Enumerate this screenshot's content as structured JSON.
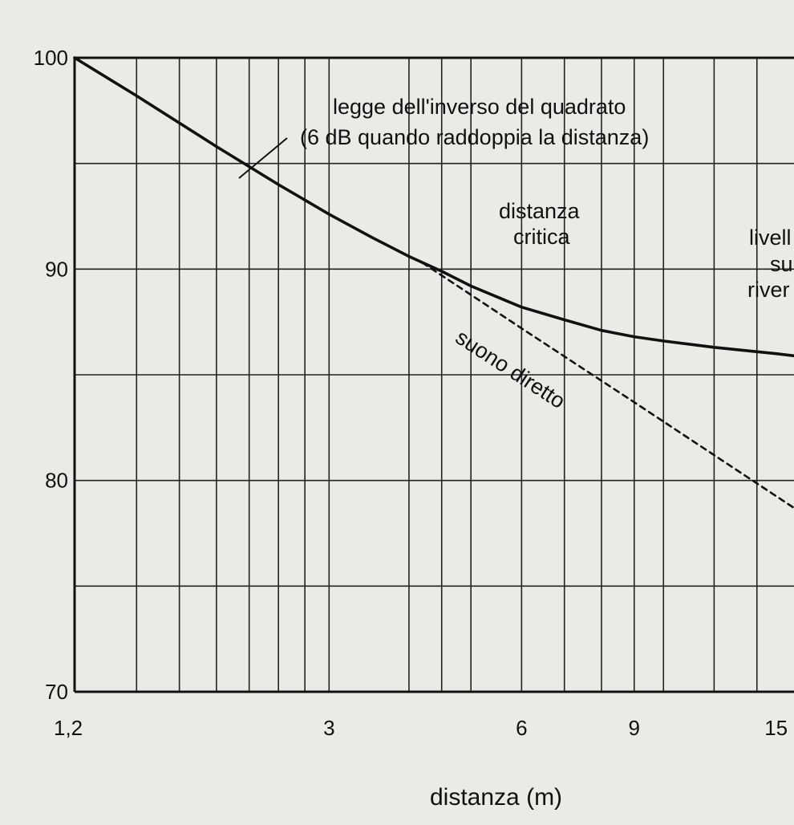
{
  "chart_data": {
    "type": "line",
    "title": "",
    "xlabel": "distanza (m)",
    "ylabel": "",
    "x_scale": "log",
    "xlim": [
      1.2,
      16
    ],
    "ylim": [
      70,
      100
    ],
    "x_ticks": [
      {
        "value": 1.2,
        "label": "1,2"
      },
      {
        "value": 3,
        "label": "3"
      },
      {
        "value": 6,
        "label": "6"
      },
      {
        "value": 9,
        "label": "9"
      },
      {
        "value": 15,
        "label": "15"
      }
    ],
    "y_ticks": [
      {
        "value": 100,
        "label": "100"
      },
      {
        "value": 90,
        "label": "90"
      },
      {
        "value": 80,
        "label": "80"
      },
      {
        "value": 70,
        "label": "70"
      }
    ],
    "grid": true,
    "series": [
      {
        "name": "",
        "style": "solid",
        "x": [
          1.2,
          1.5,
          2,
          2.5,
          3,
          3.5,
          4,
          4.5,
          5,
          6,
          7,
          8,
          9,
          10,
          12,
          15,
          16
        ],
        "y": [
          100,
          98.2,
          95.8,
          94.0,
          92.6,
          91.5,
          90.6,
          89.9,
          89.2,
          88.2,
          87.6,
          87.1,
          86.8,
          86.6,
          86.3,
          86.0,
          85.9
        ]
      },
      {
        "name": "suono diretto",
        "style": "dashed",
        "x": [
          4.2,
          6,
          9,
          12,
          16
        ],
        "y": [
          90.3,
          87.2,
          83.7,
          81.2,
          78.7
        ]
      }
    ],
    "annotations": {
      "inverse_square_line1": "legge dell'inverso del quadrato",
      "inverse_square_line2": "(6 dB quando raddoppia la distanza)",
      "critical_line1": "distanza",
      "critical_line2": "critica",
      "reverb_line1": "livell",
      "reverb_line2": "su",
      "reverb_line3": "river",
      "direct_label": "suono diretto"
    }
  }
}
